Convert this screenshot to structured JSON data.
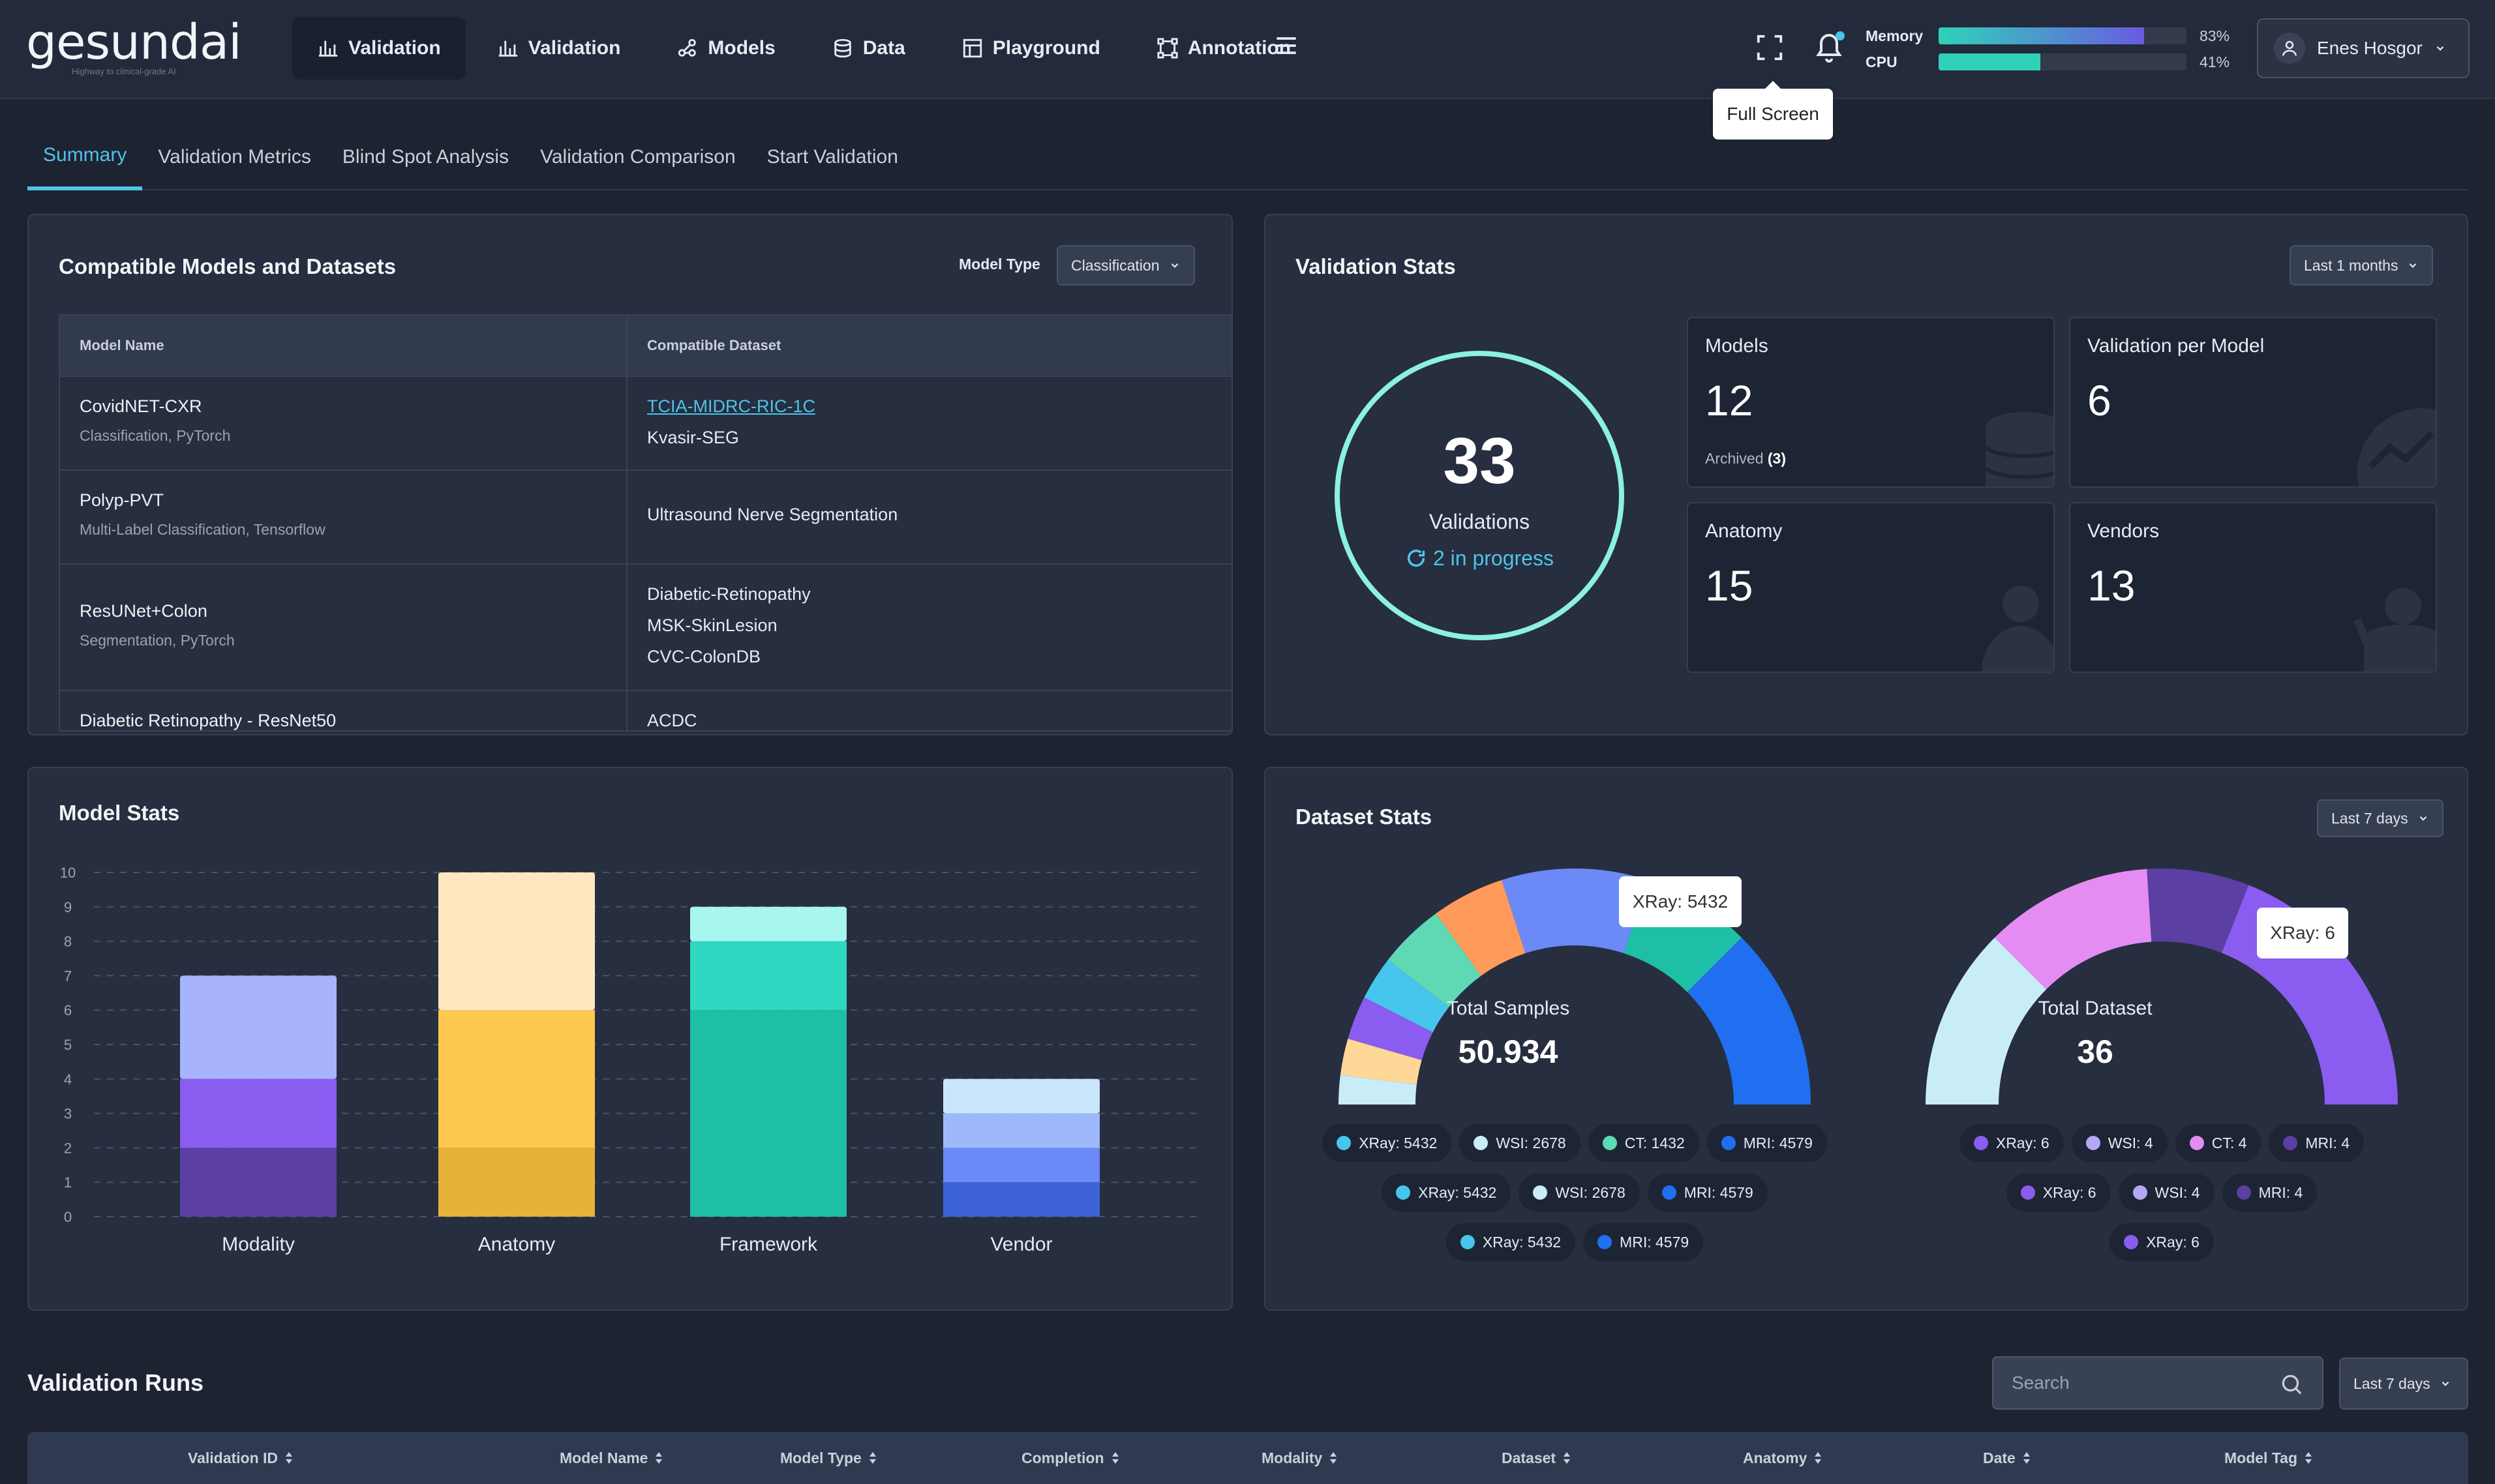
{
  "app": {
    "logo": "gesundai",
    "tagline": "Highway to clinical-grade AI"
  },
  "nav": [
    {
      "label": "Validation",
      "icon": "bar-chart-icon",
      "active": true
    },
    {
      "label": "Validation",
      "icon": "bar-chart-icon",
      "active": false
    },
    {
      "label": "Models",
      "icon": "nodes-icon",
      "active": false
    },
    {
      "label": "Data",
      "icon": "database-icon",
      "active": false
    },
    {
      "label": "Playground",
      "icon": "layout-icon",
      "active": false
    },
    {
      "label": "Annotation",
      "icon": "vector-icon",
      "active": false
    }
  ],
  "header": {
    "fullscreen_tooltip": "Full Screen",
    "memory": {
      "label": "Memory",
      "value": "83%",
      "fraction": 0.83
    },
    "cpu": {
      "label": "CPU",
      "value": "41%",
      "fraction": 0.41
    },
    "user": "Enes Hosgor"
  },
  "tabs": [
    "Summary",
    "Validation Metrics",
    "Blind Spot Analysis",
    "Validation Comparison",
    "Start Validation"
  ],
  "compatible": {
    "title": "Compatible Models and Datasets",
    "model_type_label": "Model Type",
    "model_type_value": "Classification",
    "columns": [
      "Model Name",
      "Compatible Dataset"
    ],
    "rows": [
      {
        "name": "CovidNET-CXR",
        "sub": "Classification, PyTorch",
        "datasets": [
          "TCIA-MIDRC-RIC-1C",
          "Kvasir-SEG"
        ]
      },
      {
        "name": "Polyp-PVT",
        "sub": "Multi-Label Classification, Tensorflow",
        "datasets": [
          "Ultrasound Nerve Segmentation"
        ]
      },
      {
        "name": "ResUNet+Colon",
        "sub": "Segmentation, PyTorch",
        "datasets": [
          "Diabetic-Retinopathy",
          "MSK-SkinLesion",
          "CVC-ColonDB"
        ]
      },
      {
        "name": "Diabetic Retinopathy - ResNet50",
        "sub": "",
        "datasets": [
          "ACDC"
        ]
      }
    ]
  },
  "validation_stats": {
    "title": "Validation Stats",
    "range": "Last 1 months",
    "total": "33",
    "total_label": "Validations",
    "in_progress": "2 in progress",
    "cards": [
      {
        "label": "Models",
        "value": "12",
        "sub_label": "Archived",
        "sub_value": "(3)"
      },
      {
        "label": "Validation per Model",
        "value": "6"
      },
      {
        "label": "Anatomy",
        "value": "15"
      },
      {
        "label": "Vendors",
        "value": "13"
      }
    ]
  },
  "model_stats": {
    "title": "Model Stats",
    "chart_data": {
      "type": "bar",
      "stacked": true,
      "categories": [
        "Modality",
        "Anatomy",
        "Framework",
        "Vendor"
      ],
      "ylim": [
        0,
        10
      ],
      "yticks": [
        "0",
        "1",
        "2",
        "3",
        "4",
        "5",
        "6",
        "7",
        "8",
        "9",
        "10"
      ],
      "grid": true,
      "segments": [
        [
          {
            "value": 2,
            "color": "#5b3fa3"
          },
          {
            "value": 2,
            "color": "#8a5cf0"
          },
          {
            "value": 3,
            "color": "#a7b4fb"
          }
        ],
        [
          {
            "value": 2,
            "color": "#e6b23a"
          },
          {
            "value": 4,
            "color": "#ffc94f"
          },
          {
            "value": 4,
            "color": "#ffe8bf"
          }
        ],
        [
          {
            "value": 6,
            "color": "#1fbfa5"
          },
          {
            "value": 2,
            "color": "#2fd8c0"
          },
          {
            "value": 1,
            "color": "#a7f7ee"
          }
        ],
        [
          {
            "value": 1,
            "color": "#3e63d6"
          },
          {
            "value": 1,
            "color": "#6b8af7"
          },
          {
            "value": 1,
            "color": "#9db9fb"
          },
          {
            "value": 1,
            "color": "#c9e6fc"
          }
        ]
      ]
    }
  },
  "dataset_stats": {
    "title": "Dataset Stats",
    "range": "Last 7 days",
    "left": {
      "label": "Total Samples",
      "value": "50.934",
      "tooltip": "XRay: 5432",
      "chart_data": {
        "type": "pie",
        "half": true,
        "slices": [
          {
            "value": 4,
            "color": "#c9ecf9"
          },
          {
            "value": 5,
            "color": "#ffd797"
          },
          {
            "value": 6,
            "color": "#8a5cf0"
          },
          {
            "value": 6,
            "color": "#46c6ec"
          },
          {
            "value": 9,
            "color": "#5ed9b4"
          },
          {
            "value": 10,
            "color": "#ff9a5b"
          },
          {
            "value": 20,
            "color": "#6b8af7"
          },
          {
            "value": 15,
            "color": "#1fbfa5"
          },
          {
            "value": 25,
            "color": "#1f6ff0"
          }
        ]
      },
      "legend": [
        [
          {
            "label": "XRay: 5432",
            "color": "#46c6ec"
          },
          {
            "label": "WSI: 2678",
            "color": "#c9ecf9"
          },
          {
            "label": "CT: 1432",
            "color": "#5ed9b4"
          },
          {
            "label": "MRI: 4579",
            "color": "#1f6ff0"
          }
        ],
        [
          {
            "label": "XRay: 5432",
            "color": "#46c6ec"
          },
          {
            "label": "WSI: 2678",
            "color": "#c9ecf9"
          },
          {
            "label": "MRI: 4579",
            "color": "#1f6ff0"
          }
        ],
        [
          {
            "label": "XRay: 5432",
            "color": "#46c6ec"
          },
          {
            "label": "MRI: 4579",
            "color": "#1f6ff0"
          }
        ]
      ]
    },
    "right": {
      "label": "Total Dataset",
      "value": "36",
      "tooltip": "XRay: 6",
      "chart_data": {
        "type": "pie",
        "half": true,
        "slices": [
          {
            "value": 25,
            "color": "#c9ecf9"
          },
          {
            "value": 23,
            "color": "#e48cf2"
          },
          {
            "value": 14,
            "color": "#5b3fa3"
          },
          {
            "value": 38,
            "color": "#8a5cf0"
          }
        ]
      },
      "legend": [
        [
          {
            "label": "XRay: 6",
            "color": "#8a5cf0"
          },
          {
            "label": "WSI: 4",
            "color": "#b3a8f5"
          },
          {
            "label": "CT: 4",
            "color": "#e48cf2"
          },
          {
            "label": "MRI: 4",
            "color": "#5b3fa3"
          }
        ],
        [
          {
            "label": "XRay: 6",
            "color": "#8a5cf0"
          },
          {
            "label": "WSI: 4",
            "color": "#b3a8f5"
          },
          {
            "label": "MRI: 4",
            "color": "#5b3fa3"
          }
        ],
        [
          {
            "label": "XRay: 6",
            "color": "#8a5cf0"
          }
        ]
      ]
    }
  },
  "runs": {
    "title": "Validation Runs",
    "search_placeholder": "Search",
    "range": "Last 7 days",
    "columns": [
      "Validation ID",
      "Model Name",
      "Model Type",
      "Completion",
      "Modality",
      "Dataset",
      "Anatomy",
      "Date",
      "Model Tag"
    ]
  }
}
